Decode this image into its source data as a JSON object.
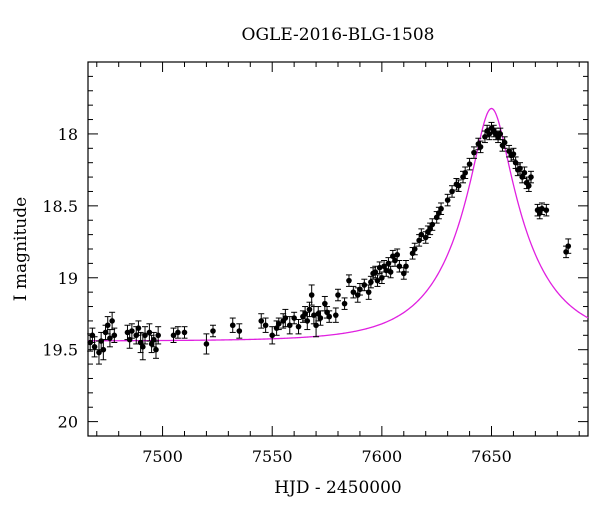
{
  "chart_data": {
    "type": "scatter",
    "title": "OGLE-2016-BLG-1508",
    "xlabel": "HJD - 2450000",
    "ylabel": "I magnitude",
    "xlim": [
      7466,
      7694
    ],
    "ylim": [
      20.1,
      17.5
    ],
    "y_inverted": true,
    "xticks": [
      7500,
      7550,
      7600,
      7650
    ],
    "yticks": [
      18,
      18.5,
      19,
      19.5,
      20
    ],
    "ytick_labels": [
      "18",
      "18.5",
      "19",
      "19.5",
      "20"
    ],
    "grid": false,
    "colors": {
      "points": "#000000",
      "model": "#e020e0",
      "axes": "#000000"
    },
    "series": [
      {
        "kind": "points_with_errorbars",
        "points": [
          [
            7467,
            19.45,
            0.06
          ],
          [
            7468,
            19.4,
            0.05
          ],
          [
            7469,
            19.48,
            0.07
          ],
          [
            7471,
            19.52,
            0.08
          ],
          [
            7472,
            19.44,
            0.06
          ],
          [
            7473,
            19.5,
            0.07
          ],
          [
            7474,
            19.38,
            0.05
          ],
          [
            7475,
            19.33,
            0.06
          ],
          [
            7476,
            19.42,
            0.06
          ],
          [
            7477,
            19.3,
            0.06
          ],
          [
            7478,
            19.4,
            0.05
          ],
          [
            7484,
            19.38,
            0.05
          ],
          [
            7485,
            19.43,
            0.06
          ],
          [
            7486,
            19.37,
            0.05
          ],
          [
            7488,
            19.4,
            0.06
          ],
          [
            7489,
            19.35,
            0.05
          ],
          [
            7490,
            19.45,
            0.07
          ],
          [
            7491,
            19.48,
            0.09
          ],
          [
            7492,
            19.4,
            0.06
          ],
          [
            7494,
            19.38,
            0.06
          ],
          [
            7495,
            19.46,
            0.06
          ],
          [
            7496,
            19.43,
            0.05
          ],
          [
            7497,
            19.5,
            0.06
          ],
          [
            7498,
            19.4,
            0.06
          ],
          [
            7505,
            19.4,
            0.05
          ],
          [
            7507,
            19.38,
            0.04
          ],
          [
            7510,
            19.38,
            0.04
          ],
          [
            7520,
            19.46,
            0.07
          ],
          [
            7523,
            19.37,
            0.04
          ],
          [
            7532,
            19.33,
            0.05
          ],
          [
            7535,
            19.37,
            0.05
          ],
          [
            7545,
            19.3,
            0.05
          ],
          [
            7547,
            19.33,
            0.05
          ],
          [
            7550,
            19.4,
            0.06
          ],
          [
            7552,
            19.35,
            0.05
          ],
          [
            7553,
            19.32,
            0.04
          ],
          [
            7555,
            19.3,
            0.05
          ],
          [
            7556,
            19.28,
            0.06
          ],
          [
            7558,
            19.33,
            0.06
          ],
          [
            7560,
            19.28,
            0.04
          ],
          [
            7562,
            19.34,
            0.05
          ],
          [
            7564,
            19.27,
            0.04
          ],
          [
            7565,
            19.25,
            0.05
          ],
          [
            7566,
            19.3,
            0.06
          ],
          [
            7567,
            19.22,
            0.05
          ],
          [
            7568,
            19.12,
            0.07
          ],
          [
            7569,
            19.26,
            0.06
          ],
          [
            7570,
            19.33,
            0.08
          ],
          [
            7571,
            19.25,
            0.05
          ],
          [
            7572,
            19.28,
            0.05
          ],
          [
            7574,
            19.18,
            0.05
          ],
          [
            7575,
            19.24,
            0.04
          ],
          [
            7576,
            19.27,
            0.04
          ],
          [
            7579,
            19.26,
            0.05
          ],
          [
            7580,
            19.12,
            0.04
          ],
          [
            7583,
            19.18,
            0.04
          ],
          [
            7585,
            19.02,
            0.04
          ],
          [
            7587,
            19.1,
            0.04
          ],
          [
            7589,
            19.12,
            0.05
          ],
          [
            7590,
            19.08,
            0.04
          ],
          [
            7592,
            19.05,
            0.04
          ],
          [
            7594,
            19.1,
            0.05
          ],
          [
            7595,
            19.03,
            0.04
          ],
          [
            7596,
            18.97,
            0.04
          ],
          [
            7597,
            18.96,
            0.04
          ],
          [
            7598,
            19.02,
            0.04
          ],
          [
            7599,
            18.93,
            0.04
          ],
          [
            7600,
            19.0,
            0.04
          ],
          [
            7601,
            18.92,
            0.04
          ],
          [
            7602,
            18.95,
            0.04
          ],
          [
            7603,
            18.9,
            0.04
          ],
          [
            7604,
            18.96,
            0.04
          ],
          [
            7605,
            18.85,
            0.04
          ],
          [
            7606,
            18.88,
            0.04
          ],
          [
            7607,
            18.84,
            0.04
          ],
          [
            7608,
            18.92,
            0.04
          ],
          [
            7610,
            18.97,
            0.04
          ],
          [
            7611,
            18.92,
            0.04
          ],
          [
            7614,
            18.83,
            0.04
          ],
          [
            7615,
            18.8,
            0.04
          ],
          [
            7617,
            18.74,
            0.04
          ],
          [
            7618,
            18.7,
            0.04
          ],
          [
            7620,
            18.72,
            0.04
          ],
          [
            7621,
            18.68,
            0.04
          ],
          [
            7622,
            18.66,
            0.04
          ],
          [
            7623,
            18.63,
            0.04
          ],
          [
            7625,
            18.58,
            0.04
          ],
          [
            7626,
            18.55,
            0.04
          ],
          [
            7627,
            18.52,
            0.04
          ],
          [
            7630,
            18.46,
            0.04
          ],
          [
            7632,
            18.4,
            0.04
          ],
          [
            7634,
            18.35,
            0.04
          ],
          [
            7635,
            18.36,
            0.04
          ],
          [
            7637,
            18.3,
            0.04
          ],
          [
            7638,
            18.27,
            0.04
          ],
          [
            7640,
            18.21,
            0.04
          ],
          [
            7642,
            18.13,
            0.04
          ],
          [
            7644,
            18.07,
            0.04
          ],
          [
            7645,
            18.09,
            0.04
          ],
          [
            7647,
            18.02,
            0.04
          ],
          [
            7648,
            17.98,
            0.04
          ],
          [
            7649,
            18.0,
            0.04
          ],
          [
            7650,
            17.96,
            0.04
          ],
          [
            7651,
            17.98,
            0.04
          ],
          [
            7652,
            18.0,
            0.04
          ],
          [
            7653,
            18.02,
            0.04
          ],
          [
            7654,
            18.0,
            0.04
          ],
          [
            7655,
            18.08,
            0.04
          ],
          [
            7656,
            18.06,
            0.04
          ],
          [
            7658,
            18.12,
            0.04
          ],
          [
            7659,
            18.15,
            0.04
          ],
          [
            7660,
            18.14,
            0.04
          ],
          [
            7661,
            18.2,
            0.04
          ],
          [
            7662,
            18.25,
            0.04
          ],
          [
            7663,
            18.24,
            0.04
          ],
          [
            7664,
            18.3,
            0.04
          ],
          [
            7665,
            18.27,
            0.04
          ],
          [
            7666,
            18.34,
            0.04
          ],
          [
            7667,
            18.36,
            0.04
          ],
          [
            7668,
            18.3,
            0.04
          ],
          [
            7671,
            18.53,
            0.04
          ],
          [
            7672,
            18.55,
            0.04
          ],
          [
            7673,
            18.52,
            0.04
          ],
          [
            7675,
            18.53,
            0.04
          ],
          [
            7684,
            18.82,
            0.04
          ],
          [
            7685,
            18.78,
            0.05
          ]
        ]
      },
      {
        "kind": "model_curve",
        "base_magnitude": 19.44,
        "t0": 7650,
        "tE": 32,
        "u0": 0.23
      }
    ]
  }
}
